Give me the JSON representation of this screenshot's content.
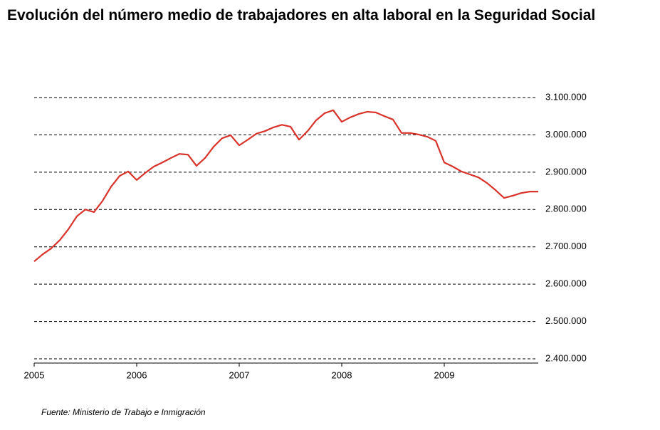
{
  "chart_data": {
    "type": "line",
    "title": "Evolución del número medio de trabajadores en alta laboral en la Seguridad Social",
    "source": "Fuente: Ministerio de Trabajo e Inmigración",
    "categories": [
      "2005",
      null,
      null,
      null,
      null,
      null,
      null,
      null,
      null,
      null,
      null,
      null,
      "2006",
      null,
      null,
      null,
      null,
      null,
      null,
      null,
      null,
      null,
      null,
      null,
      "2007",
      null,
      null,
      null,
      null,
      null,
      null,
      null,
      null,
      null,
      null,
      null,
      "2008",
      null,
      null,
      null,
      null,
      null,
      null,
      null,
      null,
      null,
      null,
      null,
      "2009",
      null,
      null,
      null,
      null,
      null,
      null,
      null,
      null,
      null,
      null,
      null
    ],
    "series": [
      {
        "color": "#d9342b",
        "values": [
          2661000,
          2680000,
          2696000,
          2718000,
          2747000,
          2782000,
          2800000,
          2793000,
          2823000,
          2861000,
          2890000,
          2902000,
          2879000,
          2898000,
          2915000,
          2926000,
          2938000,
          2949000,
          2947000,
          2917000,
          2938000,
          2968000,
          2991000,
          2999000,
          2972000,
          2987000,
          3003000,
          3010000,
          3020000,
          3027000,
          3022000,
          2987000,
          3010000,
          3039000,
          3058000,
          3066000,
          3035000,
          3047000,
          3056000,
          3062000,
          3060000,
          3050000,
          3041000,
          3005000,
          3005000,
          3001000,
          2995000,
          2984000,
          2926000,
          2915000,
          2902000,
          2894000,
          2886000,
          2871000,
          2852000,
          2831000,
          2837000,
          2844000,
          2848000,
          2848000
        ]
      }
    ],
    "ylim": [
      2400000,
      3100000
    ],
    "yticks": [
      {
        "value": 2400000,
        "label": "2.400.000"
      },
      {
        "value": 2500000,
        "label": "2.500.000"
      },
      {
        "value": 2600000,
        "label": "2.600.000"
      },
      {
        "value": 2700000,
        "label": "2.700.000"
      },
      {
        "value": 2800000,
        "label": "2.800.000"
      },
      {
        "value": 2900000,
        "label": "2.900.000"
      },
      {
        "value": 3000000,
        "label": "3.000.000"
      },
      {
        "value": 3100000,
        "label": "3.100.000"
      }
    ],
    "grid": true
  }
}
